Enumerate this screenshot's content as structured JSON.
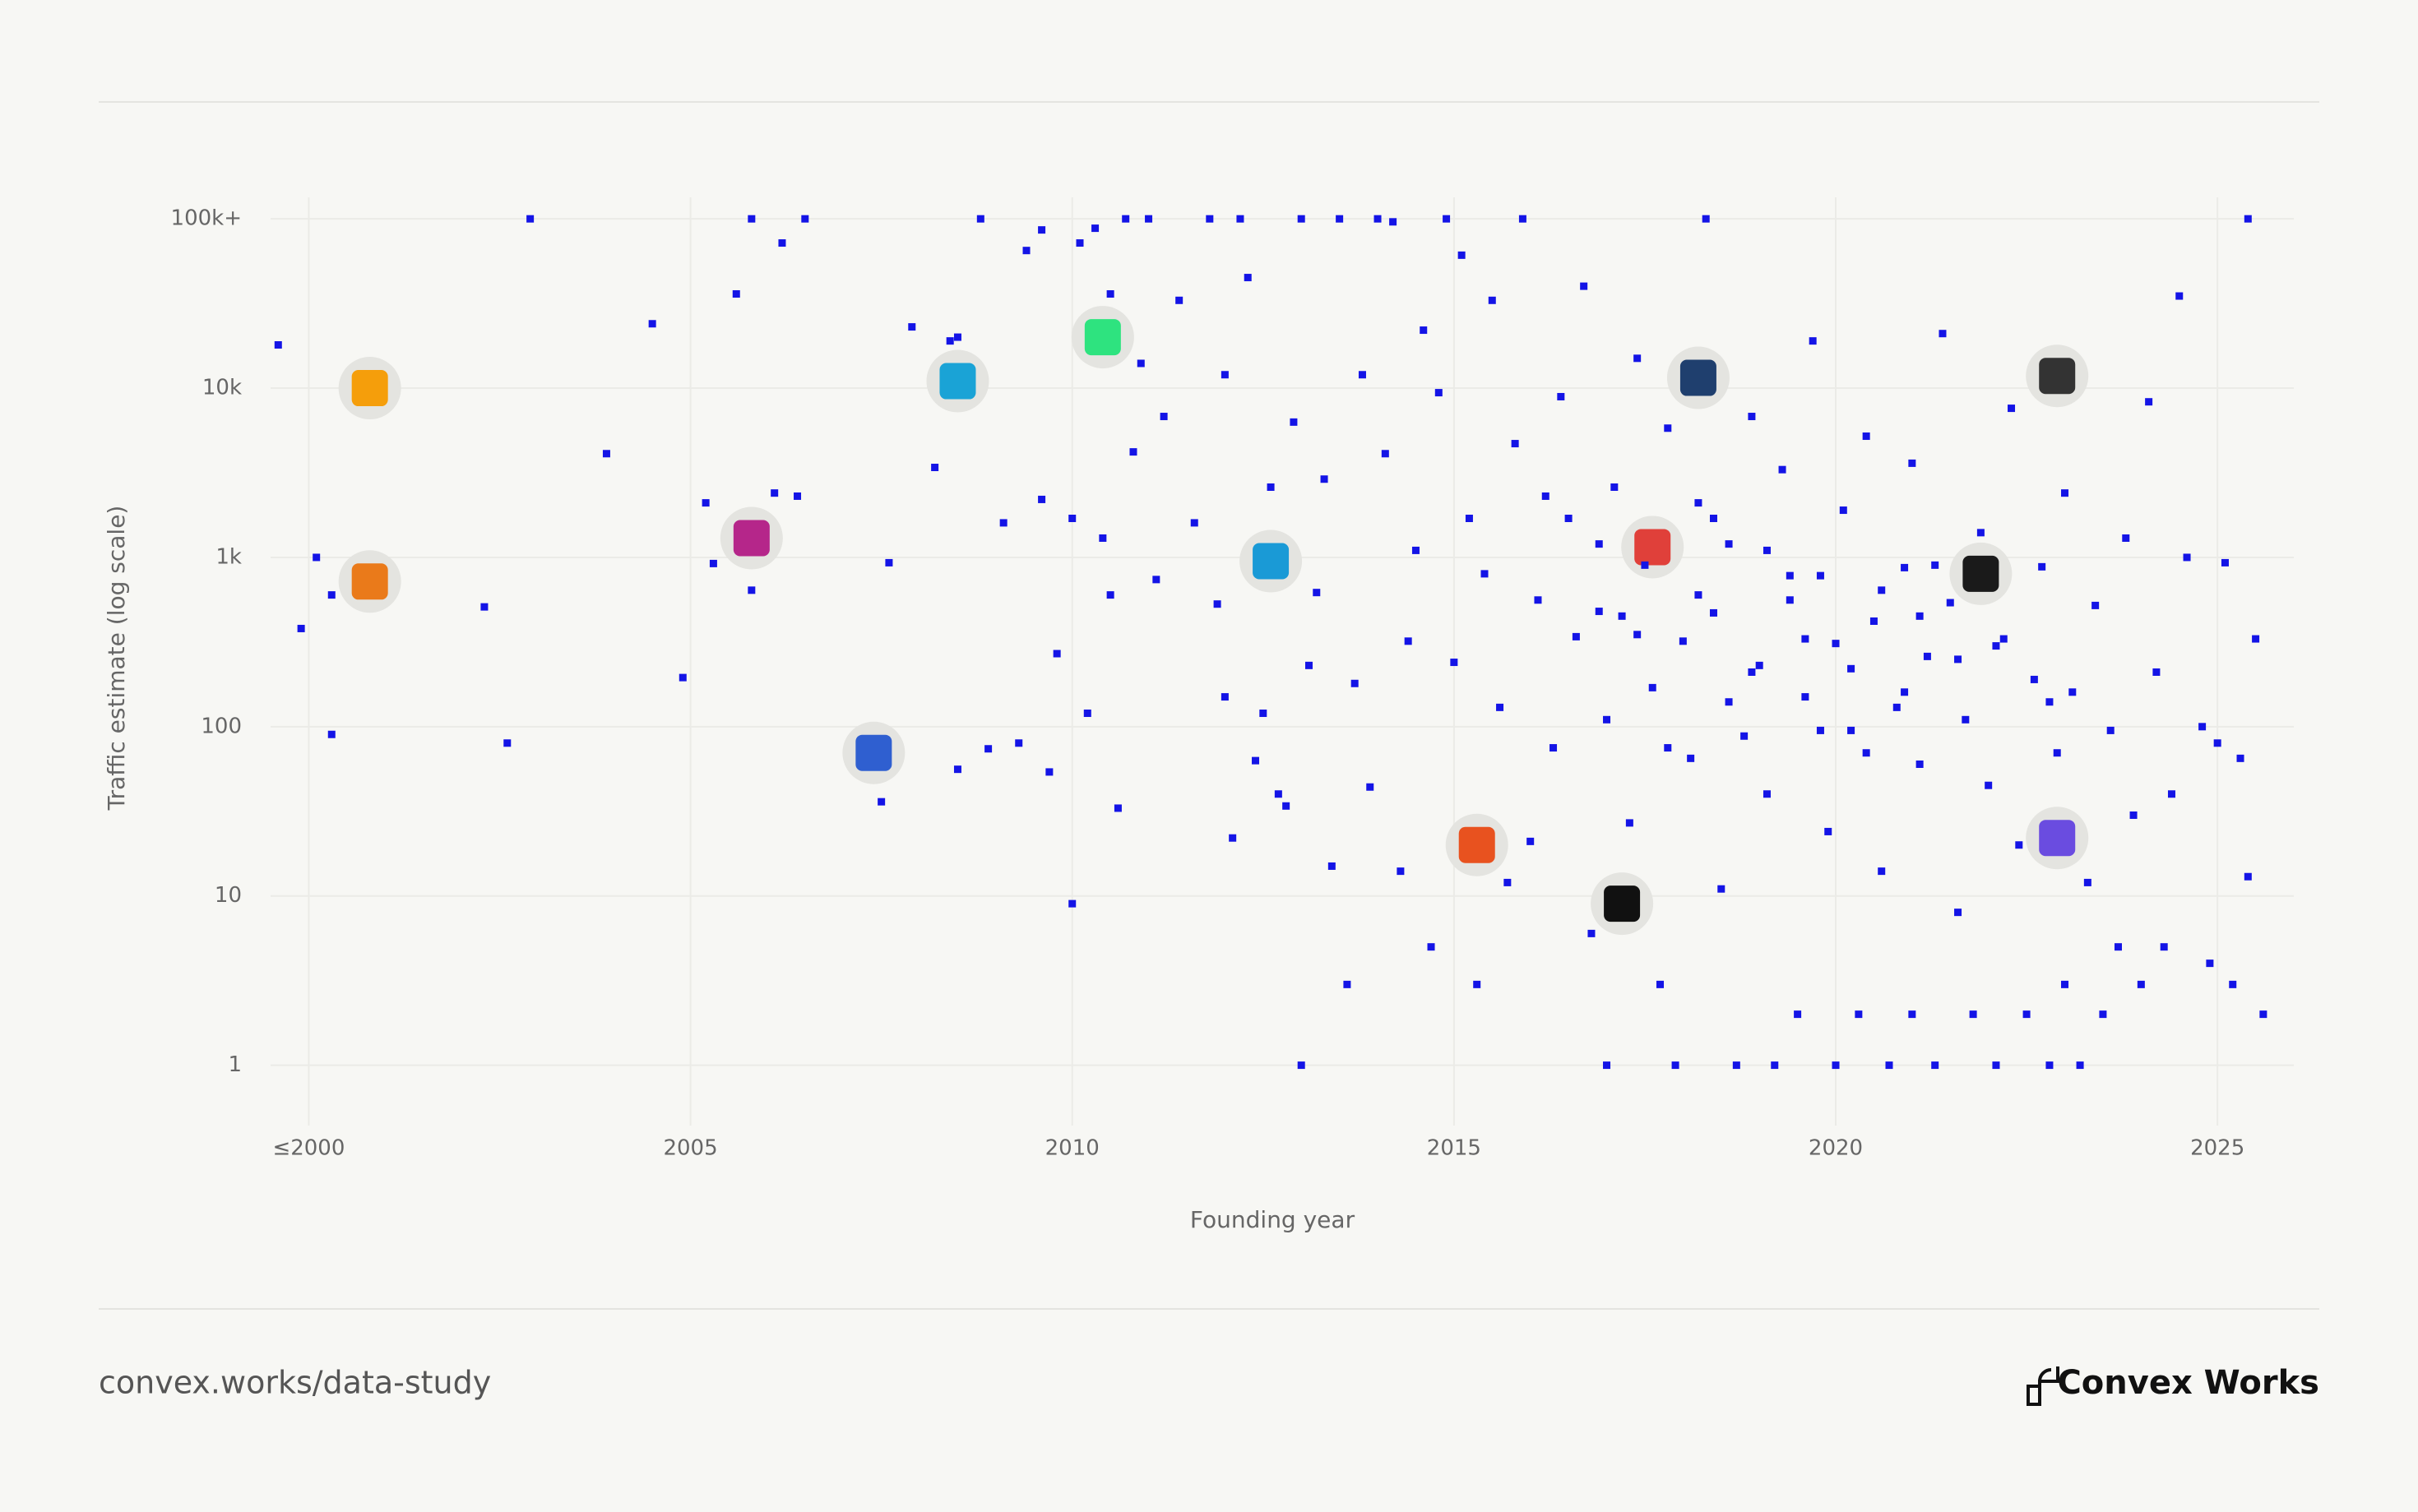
{
  "chart_data": {
    "type": "scatter",
    "x_label": "Founding year",
    "y_label": "Traffic estimate (log scale)",
    "xlim": [
      1999.5,
      2026
    ],
    "ylim": [
      0.44,
      134000
    ],
    "log_y": true,
    "grid": true,
    "color": "#1414e6",
    "xticks": [
      {
        "value": 2000,
        "label": "≤2000"
      },
      2005,
      2010,
      2015,
      2020,
      2025
    ],
    "yticks": [
      1,
      10,
      100,
      {
        "value": 1000,
        "label": "1k"
      },
      {
        "value": 10000,
        "label": "10k"
      },
      {
        "value": 100000,
        "label": "100k+"
      }
    ],
    "x": [
      1999.6,
      2000.1,
      1999.9,
      2000.3,
      2000.3,
      2002.9,
      2002.3,
      2002.6,
      2003.9,
      2004.5,
      2004.9,
      2005.2,
      2005.3,
      2005.6,
      2005.8,
      2005.8,
      2006.1,
      2006.2,
      2006.4,
      2006.5,
      2007.5,
      2007.6,
      2007.9,
      2008.2,
      2008.4,
      2008.5,
      2008.5,
      2008.8,
      2008.9,
      2009.1,
      2009.3,
      2009.4,
      2009.6,
      2009.6,
      2009.7,
      2009.8,
      2010,
      2010,
      2010.1,
      2010.2,
      2010.3,
      2010.4,
      2010.5,
      2010.5,
      2010.6,
      2010.7,
      2010.8,
      2010.9,
      2011,
      2011.1,
      2011.2,
      2011.4,
      2011.6,
      2011.8,
      2011.9,
      2012,
      2012,
      2012.1,
      2012.2,
      2012.3,
      2012.4,
      2012.5,
      2012.6,
      2012.7,
      2012.8,
      2012.9,
      2013,
      2013,
      2013.1,
      2013.2,
      2013.3,
      2013.4,
      2013.5,
      2013.6,
      2013.7,
      2013.8,
      2013.9,
      2014,
      2014.1,
      2014.2,
      2014.3,
      2014.4,
      2014.5,
      2014.6,
      2014.7,
      2014.8,
      2014.9,
      2015,
      2015.1,
      2015.2,
      2015.3,
      2015.4,
      2015.5,
      2015.6,
      2015.7,
      2015.8,
      2015.9,
      2016,
      2016.1,
      2016.2,
      2016.3,
      2016.4,
      2016.5,
      2016.6,
      2016.7,
      2016.8,
      2016.9,
      2017,
      2017,
      2017.1,
      2017.2,
      2017.3,
      2017.4,
      2017.5,
      2017.6,
      2017.7,
      2017.8,
      2017.9,
      2018,
      2018.1,
      2018.2,
      2018.3,
      2018.4,
      2018.5,
      2018.6,
      2018.7,
      2018.8,
      2018.9,
      2019,
      2019.1,
      2019.2,
      2019.3,
      2019.4,
      2019.5,
      2019.6,
      2019.7,
      2019.8,
      2019.9,
      2020,
      2020,
      2020.1,
      2020.2,
      2020.3,
      2020.4,
      2020.5,
      2020.6,
      2020.7,
      2020.8,
      2020.9,
      2021,
      2021,
      2021.1,
      2021.2,
      2021.3,
      2021.4,
      2021.5,
      2021.6,
      2021.7,
      2021.8,
      2021.9,
      2022,
      2022.1,
      2022.2,
      2022.3,
      2022.4,
      2022.5,
      2022.6,
      2022.7,
      2022.8,
      2022.9,
      2023,
      2023,
      2023.1,
      2023.2,
      2023.3,
      2023.4,
      2023.5,
      2023.6,
      2023.7,
      2023.8,
      2023.9,
      2024,
      2024.1,
      2024.2,
      2024.3,
      2024.4,
      2024.5,
      2024.6,
      2024.8,
      2024.9,
      2025,
      2025.1,
      2025.2,
      2025.3,
      2025.4,
      2025.4,
      2025.5,
      2025.6,
      2017.4,
      2018.6,
      2019.4,
      2020.2,
      2021.1,
      2019.8,
      2020.9,
      2018.2,
      2022.1,
      2019.1,
      2020.6,
      2021.6,
      2018.9,
      2017.8,
      2022.8,
      2021.3,
      2019.6,
      2020.4,
      2016.9,
      2018.4
    ],
    "y": [
      18000,
      1000,
      380,
      90,
      600,
      100000,
      510,
      80,
      4100,
      24000,
      195,
      2100,
      920,
      36000,
      640,
      100000,
      2400,
      72000,
      2300,
      100000,
      36,
      930,
      23000,
      3400,
      19000,
      20000,
      56,
      100000,
      74,
      1600,
      80,
      65000,
      86000,
      2200,
      54,
      270,
      1700,
      9,
      72000,
      120,
      88000,
      1300,
      36000,
      600,
      33,
      100000,
      4200,
      14000,
      100000,
      740,
      6800,
      33000,
      1600,
      100000,
      530,
      150,
      12000,
      22,
      100000,
      45000,
      63,
      120,
      2600,
      40,
      34,
      6300,
      100000,
      1,
      230,
      620,
      2900,
      15,
      100000,
      3,
      180,
      12000,
      44,
      100000,
      4100,
      96000,
      14,
      320,
      1100,
      22000,
      5,
      9400,
      100000,
      240,
      61000,
      1700,
      3,
      800,
      33000,
      130,
      12,
      4700,
      100000,
      21,
      560,
      2300,
      75,
      8900,
      1700,
      340,
      40000,
      6,
      1200,
      1,
      110,
      2600,
      450,
      27,
      15000,
      900,
      170,
      3,
      5800,
      1,
      320,
      65,
      2100,
      100000,
      470,
      11,
      1200,
      1,
      88,
      6800,
      230,
      40,
      1,
      3300,
      560,
      2,
      150,
      19000,
      780,
      24,
      1,
      310,
      1900,
      95,
      2,
      5200,
      420,
      14,
      1,
      130,
      870,
      2,
      3600,
      60,
      260,
      1,
      21000,
      540,
      8,
      110,
      2,
      1400,
      45,
      1,
      330,
      7600,
      20,
      2,
      190,
      880,
      1,
      70,
      3,
      2400,
      160,
      1,
      12,
      520,
      2,
      95,
      5,
      1300,
      30,
      3,
      8300,
      210,
      5,
      40,
      35000,
      1000,
      100,
      4,
      80,
      930,
      3,
      65,
      100000,
      13,
      330,
      2,
      350,
      140,
      780,
      220,
      450,
      95,
      160,
      600,
      300,
      1100,
      640,
      250,
      210,
      75,
      140,
      900,
      330,
      70,
      480,
      1700
    ],
    "highlights": {
      "x": [
        2000.8,
        2000.8,
        2005.8,
        2007.4,
        2008.5,
        2010.4,
        2012.6,
        2015.3,
        2017.2,
        2017.6,
        2018.2,
        2021.9,
        2022.9,
        2022.9
      ],
      "y": [
        10000,
        720,
        1300,
        70,
        11000,
        20000,
        950,
        20,
        9,
        1150,
        11500,
        800,
        11800,
        22
      ],
      "colors": [
        "#f59e0b",
        "#ea7a1a",
        "#b5268a",
        "#2f5fd0",
        "#1aa3d6",
        "#2ee37f",
        "#1a9ad6",
        "#e8521f",
        "#111111",
        "#e0403a",
        "#1f3f6e",
        "#1a1a1a",
        "#333333",
        "#6a4ce0"
      ]
    },
    "footer_url": "convex.works/data-study",
    "brand": "Convex Works"
  }
}
